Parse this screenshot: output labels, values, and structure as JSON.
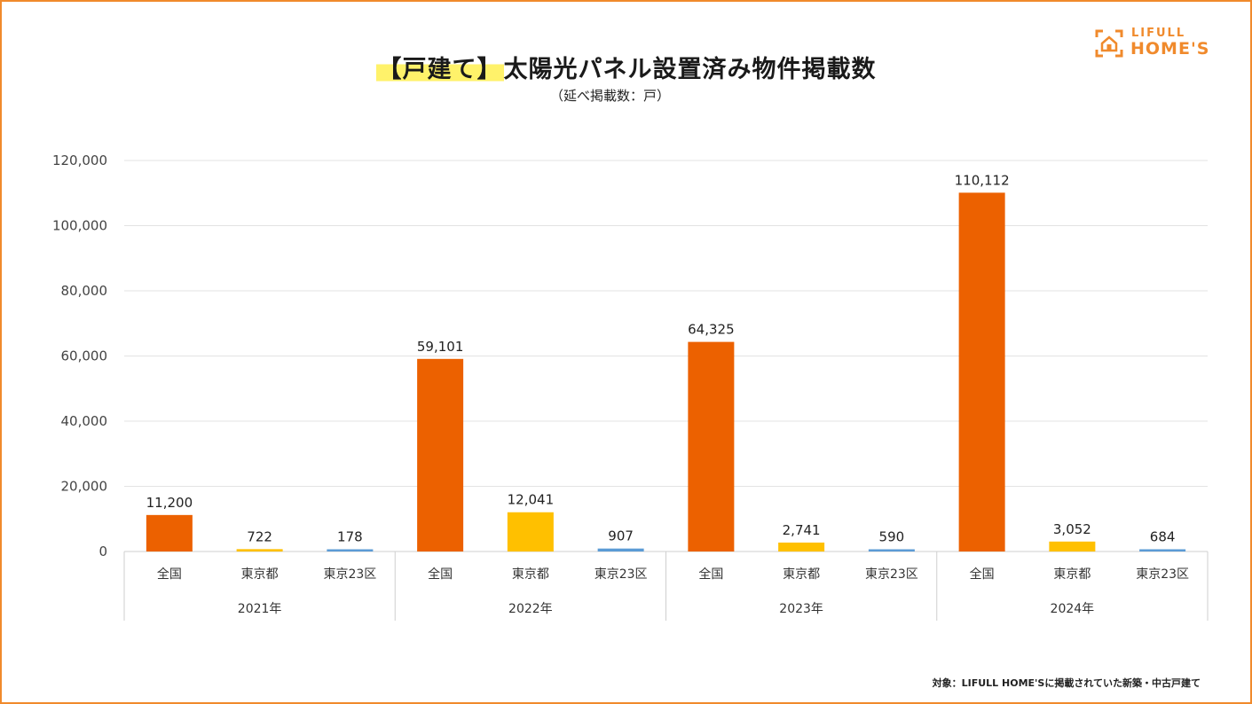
{
  "title_highlight": "【戸建て】",
  "title_rest": "太陽光パネル設置済み物件掲載数",
  "subtitle": "（延べ掲載数：戸）",
  "logo": {
    "line1": "LIFULL",
    "line2": "HOME'S",
    "icon": "house-icon",
    "color": "#f08a2c"
  },
  "footnote": "対象：LIFULL HOME'Sに掲載されていた新築・中古戸建て",
  "chart_data": {
    "type": "bar",
    "title": "【戸建て】太陽光パネル設置済み物件掲載数",
    "subtitle": "（延べ掲載数：戸）",
    "ylim": [
      0,
      120000
    ],
    "yticks": [
      0,
      20000,
      40000,
      60000,
      80000,
      100000,
      120000
    ],
    "ytick_labels": [
      "0",
      "20,000",
      "40,000",
      "60,000",
      "80,000",
      "100,000",
      "120,000"
    ],
    "grid": true,
    "groups": [
      {
        "label": "2021年",
        "bars": [
          {
            "category": "全国",
            "value": 11200,
            "label": "11,200",
            "color": "#ec6100"
          },
          {
            "category": "東京都",
            "value": 722,
            "label": "722",
            "color": "#ffc000"
          },
          {
            "category": "東京23区",
            "value": 178,
            "label": "178",
            "color": "#5b9bd5"
          }
        ]
      },
      {
        "label": "2022年",
        "bars": [
          {
            "category": "全国",
            "value": 59101,
            "label": "59,101",
            "color": "#ec6100"
          },
          {
            "category": "東京都",
            "value": 12041,
            "label": "12,041",
            "color": "#ffc000"
          },
          {
            "category": "東京23区",
            "value": 907,
            "label": "907",
            "color": "#5b9bd5"
          }
        ]
      },
      {
        "label": "2023年",
        "bars": [
          {
            "category": "全国",
            "value": 64325,
            "label": "64,325",
            "color": "#ec6100"
          },
          {
            "category": "東京都",
            "value": 2741,
            "label": "2,741",
            "color": "#ffc000"
          },
          {
            "category": "東京23区",
            "value": 590,
            "label": "590",
            "color": "#5b9bd5"
          }
        ]
      },
      {
        "label": "2024年",
        "bars": [
          {
            "category": "全国",
            "value": 110112,
            "label": "110,112",
            "color": "#ec6100"
          },
          {
            "category": "東京都",
            "value": 3052,
            "label": "3,052",
            "color": "#ffc000"
          },
          {
            "category": "東京23区",
            "value": 684,
            "label": "684",
            "color": "#5b9bd5"
          }
        ]
      }
    ]
  }
}
